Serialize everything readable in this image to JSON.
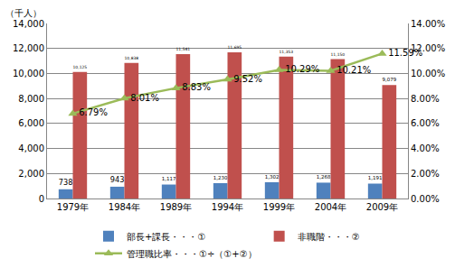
{
  "chart_data": {
    "type": "bar",
    "categories": [
      "1979年",
      "1984年",
      "1989年",
      "1994年",
      "1999年",
      "2004年",
      "2009年"
    ],
    "ylabel": "（千人）",
    "series": [
      {
        "name": "部長+課長・・・①",
        "type": "bar",
        "color": "#4f81bd",
        "values": [
          738,
          943,
          1117,
          1230,
          1302,
          1268,
          1191
        ],
        "value_labels": [
          "738",
          "943",
          "1,117",
          "1,230",
          "1,302",
          "1,268",
          "1,191"
        ]
      },
      {
        "name": "非職階・・・②",
        "type": "bar",
        "color": "#c0504d",
        "values": [
          10125,
          10838,
          11541,
          11695,
          11353,
          11150,
          9079
        ],
        "value_labels": [
          "10,125",
          "10,838",
          "11,541",
          "11,695",
          "11,353",
          "11,150",
          "9,079"
        ]
      },
      {
        "name": "管理職比率・・・①÷（①+②）",
        "type": "line",
        "axis": "y2",
        "color": "#9bbb59",
        "marker": "triangle-up",
        "values": [
          6.79,
          8.01,
          8.83,
          9.52,
          10.29,
          10.21,
          11.59
        ],
        "value_labels": [
          "6.79%",
          "8.01%",
          "8.83%",
          "9.52%",
          "10.29%",
          "10.21%",
          "11.59%"
        ]
      }
    ],
    "ylim": [
      0,
      14000
    ],
    "yticks": [
      0,
      {
        "value": 2000,
        "label": "2,000"
      },
      {
        "value": 4000,
        "label": "4,000"
      },
      {
        "value": 6000,
        "label": "6,000"
      },
      {
        "value": 8000,
        "label": "8,000"
      },
      {
        "value": 10000,
        "label": "10,000"
      },
      {
        "value": 12000,
        "label": "12,000"
      },
      {
        "value": 14000,
        "label": "14,000"
      }
    ],
    "y2lim": [
      0,
      14
    ],
    "y2ticks": [
      {
        "value": 0,
        "label": "0.00%"
      },
      {
        "value": 2,
        "label": "2.00%"
      },
      {
        "value": 4,
        "label": "4.00%"
      },
      {
        "value": 6,
        "label": "6.00%"
      },
      {
        "value": 8,
        "label": "8.00%"
      },
      {
        "value": 10,
        "label": "10.00%"
      },
      {
        "value": 12,
        "label": "12.00%"
      },
      {
        "value": 14,
        "label": "14.00%"
      }
    ],
    "grid": true,
    "data_labels": true,
    "legend": "bottom"
  }
}
